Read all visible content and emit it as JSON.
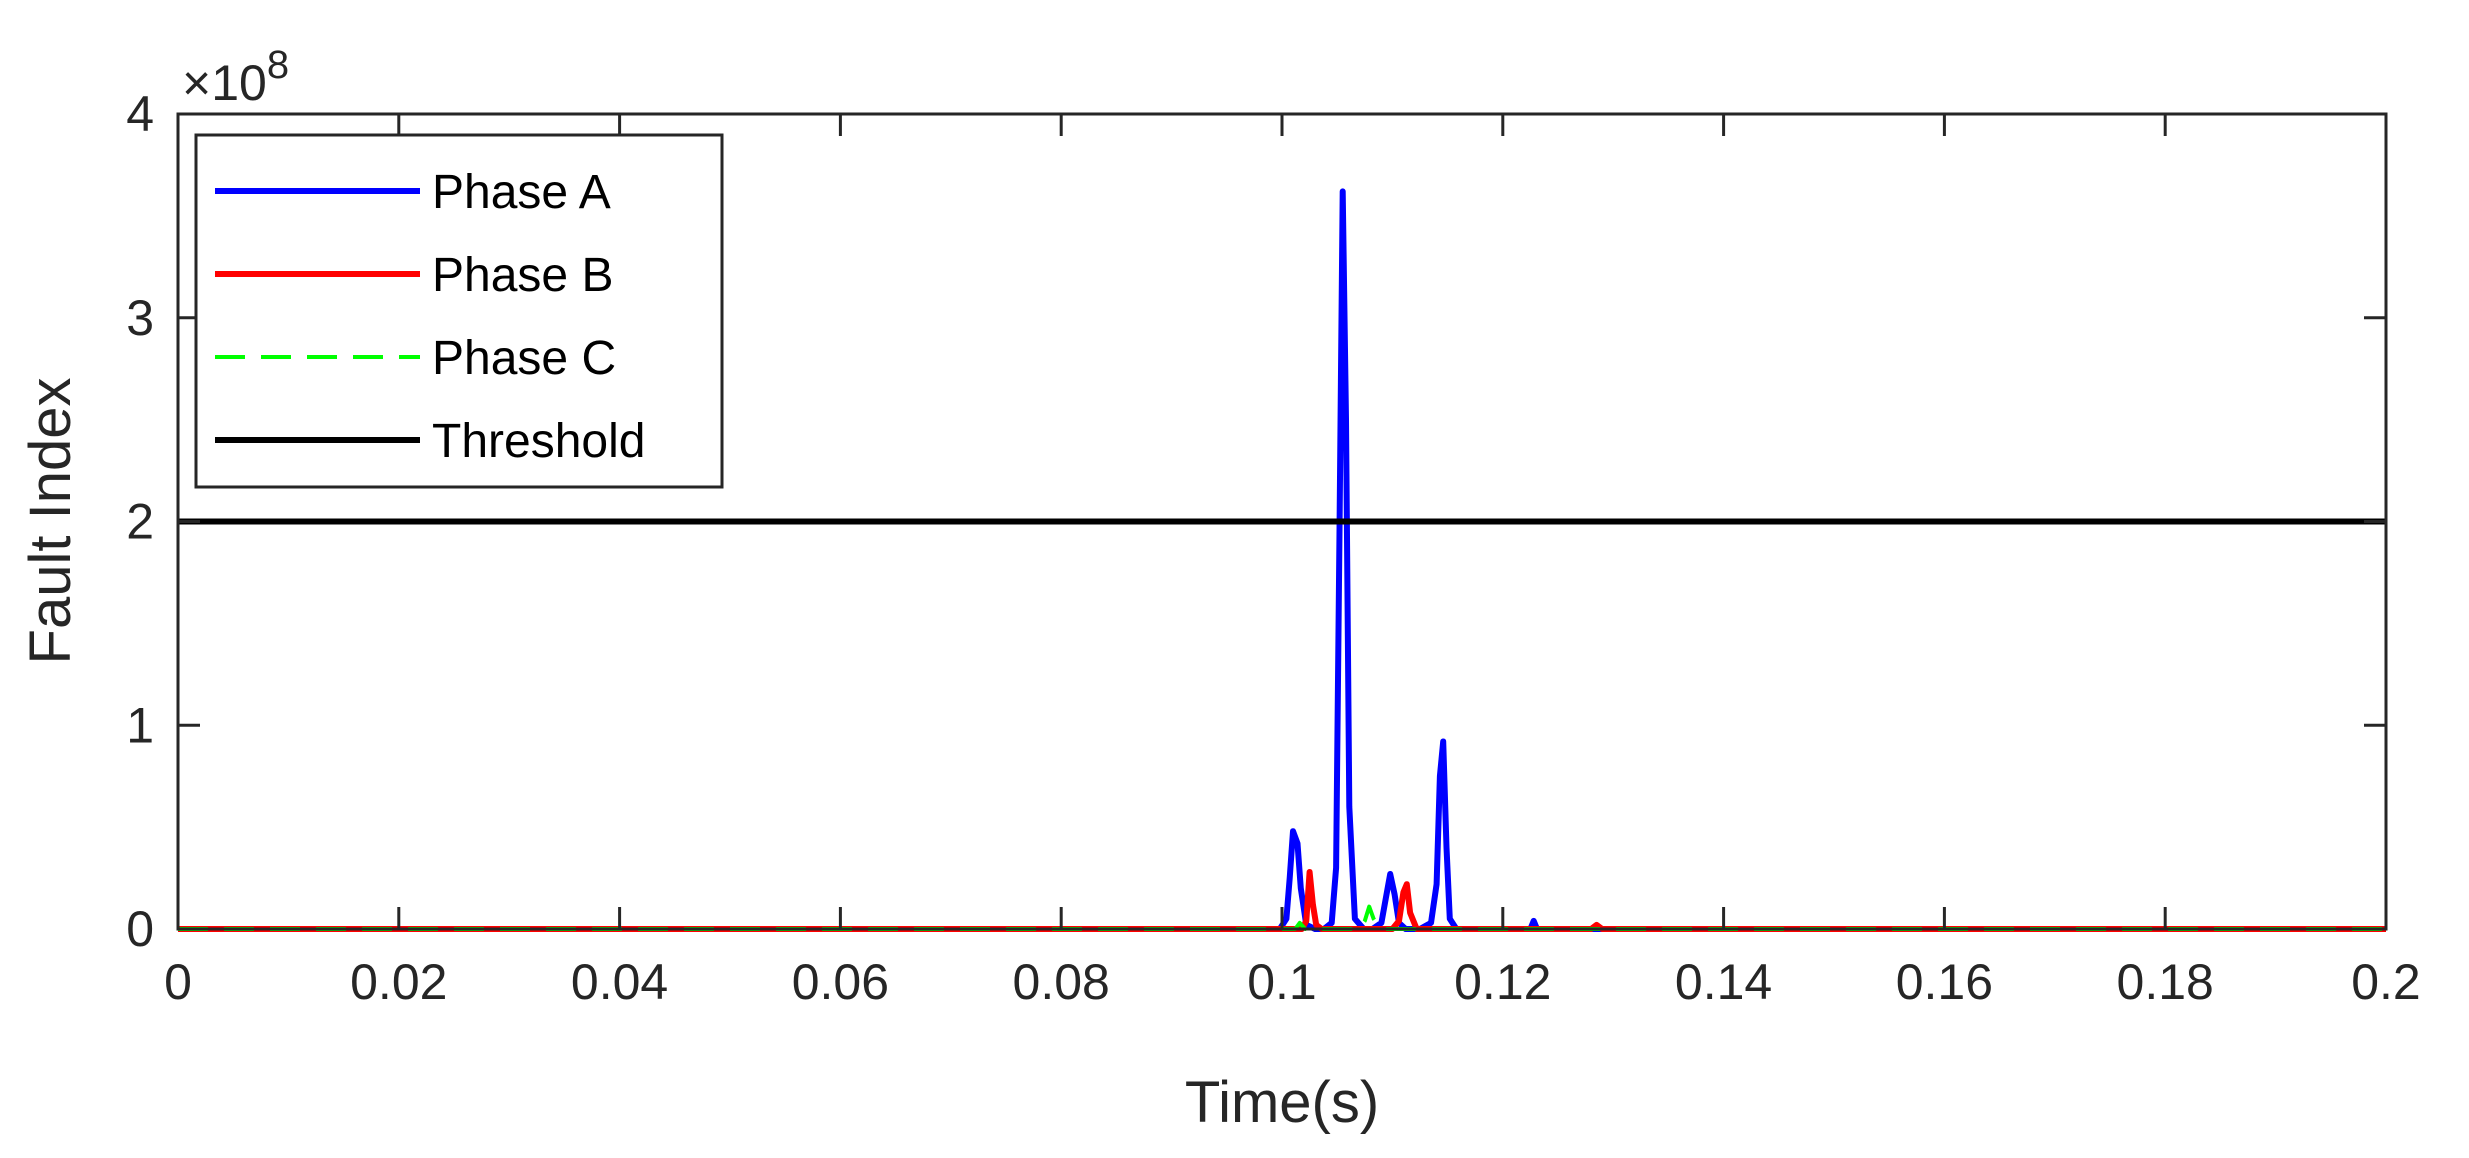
{
  "chart_data": {
    "type": "line",
    "xlabel": "Time(s)",
    "ylabel": "Fault Index",
    "exponent_label": "×10",
    "exponent_power": "8",
    "xlim": [
      0,
      0.2
    ],
    "ylim": [
      0,
      400000000
    ],
    "xticks": [
      0,
      0.02,
      0.04,
      0.06,
      0.08,
      0.1,
      0.12,
      0.14,
      0.16,
      0.18,
      0.2
    ],
    "xtick_labels": [
      "0",
      "0.02",
      "0.04",
      "0.06",
      "0.08",
      "0.1",
      "0.12",
      "0.14",
      "0.16",
      "0.18",
      "0.2"
    ],
    "yticks": [
      0,
      100000000,
      200000000,
      300000000,
      400000000
    ],
    "ytick_labels": [
      "0",
      "1",
      "2",
      "3",
      "4"
    ],
    "grid": false,
    "legend_position": "top-left",
    "series": [
      {
        "name": "Phase A",
        "color": "#0000ff",
        "style": "solid",
        "x": [
          0,
          0.0998,
          0.1004,
          0.1007,
          0.101,
          0.1014,
          0.1017,
          0.1022,
          0.103,
          0.1038,
          0.1045,
          0.1049,
          0.1052,
          0.1055,
          0.1058,
          0.1061,
          0.1066,
          0.1074,
          0.1082,
          0.109,
          0.1094,
          0.1098,
          0.1102,
          0.1106,
          0.1112,
          0.1125,
          0.1135,
          0.114,
          0.1143,
          0.1146,
          0.1149,
          0.1152,
          0.1158,
          0.1175,
          0.12,
          0.1225,
          0.1228,
          0.1231,
          0.124,
          0.128,
          0.2
        ],
        "y": [
          0,
          0,
          5000000,
          25000000,
          48000000,
          42000000,
          20000000,
          2000000,
          0,
          0,
          3000000,
          30000000,
          190000000,
          362000000,
          250000000,
          60000000,
          5000000,
          0,
          0,
          3000000,
          15000000,
          27000000,
          17000000,
          3000000,
          0,
          0,
          3000000,
          22000000,
          75000000,
          92000000,
          40000000,
          5000000,
          0,
          0,
          0,
          0,
          4000000,
          0,
          0,
          0,
          0
        ]
      },
      {
        "name": "Phase B",
        "color": "#ff0000",
        "style": "solid",
        "x": [
          0,
          0.1018,
          0.1022,
          0.1025,
          0.1028,
          0.1031,
          0.1036,
          0.11,
          0.1106,
          0.111,
          0.1113,
          0.1116,
          0.1122,
          0.128,
          0.1285,
          0.129,
          0.2
        ],
        "y": [
          0,
          0,
          4000000,
          28000000,
          12000000,
          2000000,
          0,
          0,
          4000000,
          18000000,
          22000000,
          8000000,
          0,
          0,
          2000000,
          0,
          0
        ]
      },
      {
        "name": "Phase C",
        "color": "#00ff00",
        "style": "dashed",
        "x": [
          0,
          0.1012,
          0.1016,
          0.1021,
          0.107,
          0.1075,
          0.1079,
          0.1083,
          0.1088,
          0.1092,
          0.2
        ],
        "y": [
          0,
          0,
          3000000,
          0,
          0,
          4000000,
          11000000,
          5000000,
          1000000,
          0,
          0
        ]
      },
      {
        "name": "Threshold",
        "color": "#000000",
        "style": "solid",
        "x": [
          0,
          0.2
        ],
        "y": [
          200000000,
          200000000
        ]
      }
    ]
  }
}
